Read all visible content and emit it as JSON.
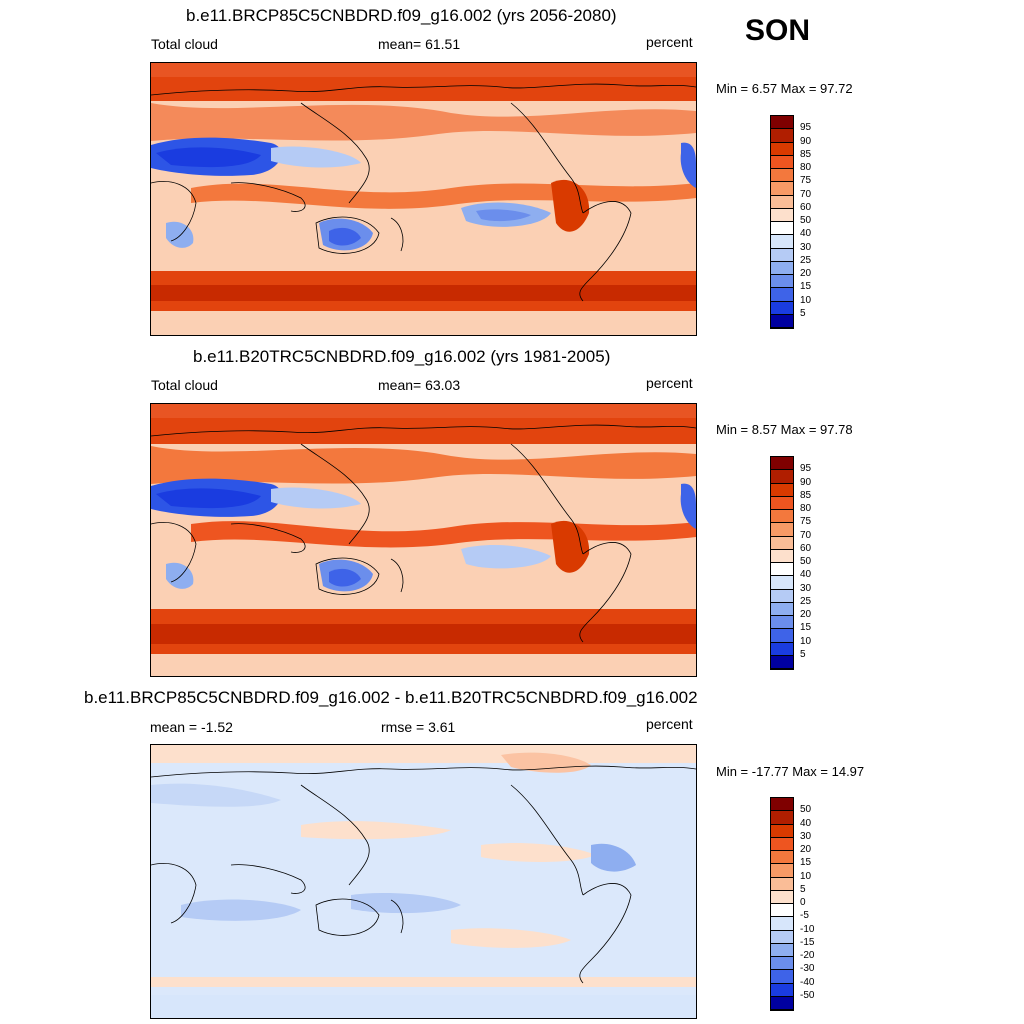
{
  "season": "SON",
  "panels": [
    {
      "title": "b.e11.BRCP85C5CNBDRD.f09_g16.002 (yrs 2056-2080)",
      "left_label": "Total cloud",
      "center_label": "mean=  61.51",
      "right_label": "percent",
      "minmax": "Min =   6.57 Max =  97.72"
    },
    {
      "title": "b.e11.B20TRC5CNBDRD.f09_g16.002 (yrs 1981-2005)",
      "left_label": "Total cloud",
      "center_label": "mean=  63.03",
      "right_label": "percent",
      "minmax": "Min =   8.57 Max =  97.78"
    },
    {
      "title": "b.e11.BRCP85C5CNBDRD.f09_g16.002 - b.e11.B20TRC5CNBDRD.f09_g16.002",
      "left_label": "mean =  -1.52",
      "center_label": "rmse =   3.61",
      "right_label": "percent",
      "minmax": "Min = -17.77 Max =  14.97"
    }
  ],
  "colorbar_abs": {
    "ticks": [
      "95",
      "90",
      "85",
      "80",
      "75",
      "70",
      "60",
      "50",
      "40",
      "30",
      "25",
      "20",
      "15",
      "10",
      "5"
    ],
    "colors": [
      "#7f0000",
      "#b01e00",
      "#d93a00",
      "#ee5520",
      "#f3783d",
      "#f79a66",
      "#fabd97",
      "#fde0cc",
      "#ffffff",
      "#d7e6fb",
      "#b5cbf5",
      "#8eaef0",
      "#6b8eec",
      "#3e63e8",
      "#1a3ce0",
      "#0000a0"
    ]
  },
  "colorbar_diff": {
    "ticks": [
      "50",
      "40",
      "30",
      "20",
      "15",
      "10",
      "5",
      "0",
      "-5",
      "-10",
      "-15",
      "-20",
      "-30",
      "-40",
      "-50"
    ],
    "colors": [
      "#7f0000",
      "#b01e00",
      "#d93a00",
      "#ee5520",
      "#f3783d",
      "#f79a66",
      "#fabd97",
      "#fde0cc",
      "#ffffff",
      "#d7e6fb",
      "#b5cbf5",
      "#8eaef0",
      "#6b8eec",
      "#3e63e8",
      "#1a3ce0",
      "#0000a0"
    ]
  }
}
